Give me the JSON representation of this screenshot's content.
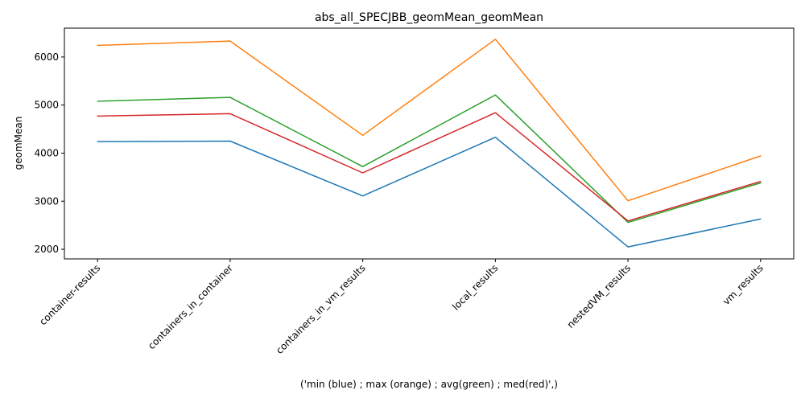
{
  "chart_data": {
    "type": "line",
    "title": "abs_all_SPECJBB_geomMean_geomMean",
    "xlabel": "('min (blue) ; max (orange) ; avg(green) ; med(red)',)",
    "ylabel": "geomMean",
    "categories": [
      "container-results",
      "containers_in_container",
      "containers_in_vm_results",
      "local_results",
      "nestedVM_results",
      "vm_results"
    ],
    "yticks": [
      2000,
      3000,
      4000,
      5000,
      6000
    ],
    "ylim": [
      1800,
      6600
    ],
    "grid": false,
    "series": [
      {
        "color": "#1f77b4",
        "values": [
          4240,
          4250,
          3110,
          4330,
          2050,
          2630
        ]
      },
      {
        "color": "#ff7f0e",
        "values": [
          6240,
          6330,
          4370,
          6370,
          3010,
          3940
        ]
      },
      {
        "color": "#2ca02c",
        "values": [
          5080,
          5160,
          3720,
          5210,
          2560,
          3380
        ]
      },
      {
        "color": "#d62728",
        "values": [
          4770,
          4820,
          3590,
          4840,
          2590,
          3410
        ]
      }
    ]
  }
}
